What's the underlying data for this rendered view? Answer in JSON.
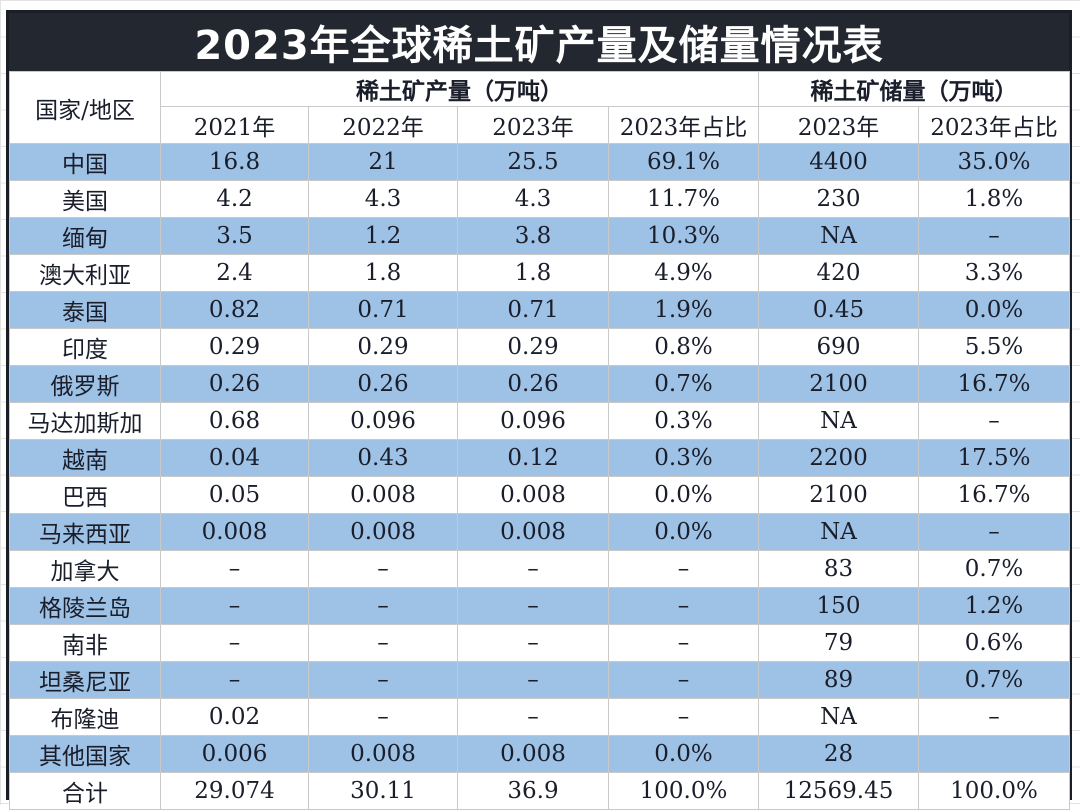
{
  "title": "2023年全球稀土矿产量及储量情况表",
  "header": {
    "country_col": "国家/地区",
    "production_group": "稀土矿产量（万吨）",
    "reserves_group": "稀土矿储量（万吨）",
    "subcolumns": [
      "2021年",
      "2022年",
      "2023年",
      "2023年占比",
      "2023年",
      "2023年占比"
    ]
  },
  "colors": {
    "title_bg": "#232830",
    "title_text": "#ffffff",
    "row_blue": "#9ec1e6",
    "row_white": "#ffffff",
    "border": "#1b1e24"
  },
  "rows": [
    {
      "country": "中国",
      "p2021": "16.8",
      "p2022": "21",
      "p2023": "25.5",
      "p_share": "69.1%",
      "r2023": "4400",
      "r_share": "35.0%"
    },
    {
      "country": "美国",
      "p2021": "4.2",
      "p2022": "4.3",
      "p2023": "4.3",
      "p_share": "11.7%",
      "r2023": "230",
      "r_share": "1.8%"
    },
    {
      "country": "缅甸",
      "p2021": "3.5",
      "p2022": "1.2",
      "p2023": "3.8",
      "p_share": "10.3%",
      "r2023": "NA",
      "r_share": "–"
    },
    {
      "country": "澳大利亚",
      "p2021": "2.4",
      "p2022": "1.8",
      "p2023": "1.8",
      "p_share": "4.9%",
      "r2023": "420",
      "r_share": "3.3%"
    },
    {
      "country": "泰国",
      "p2021": "0.82",
      "p2022": "0.71",
      "p2023": "0.71",
      "p_share": "1.9%",
      "r2023": "0.45",
      "r_share": "0.0%"
    },
    {
      "country": "印度",
      "p2021": "0.29",
      "p2022": "0.29",
      "p2023": "0.29",
      "p_share": "0.8%",
      "r2023": "690",
      "r_share": "5.5%"
    },
    {
      "country": "俄罗斯",
      "p2021": "0.26",
      "p2022": "0.26",
      "p2023": "0.26",
      "p_share": "0.7%",
      "r2023": "2100",
      "r_share": "16.7%"
    },
    {
      "country": "马达加斯加",
      "p2021": "0.68",
      "p2022": "0.096",
      "p2023": "0.096",
      "p_share": "0.3%",
      "r2023": "NA",
      "r_share": "–"
    },
    {
      "country": "越南",
      "p2021": "0.04",
      "p2022": "0.43",
      "p2023": "0.12",
      "p_share": "0.3%",
      "r2023": "2200",
      "r_share": "17.5%"
    },
    {
      "country": "巴西",
      "p2021": "0.05",
      "p2022": "0.008",
      "p2023": "0.008",
      "p_share": "0.0%",
      "r2023": "2100",
      "r_share": "16.7%"
    },
    {
      "country": "马来西亚",
      "p2021": "0.008",
      "p2022": "0.008",
      "p2023": "0.008",
      "p_share": "0.0%",
      "r2023": "NA",
      "r_share": "–"
    },
    {
      "country": "加拿大",
      "p2021": "–",
      "p2022": "–",
      "p2023": "–",
      "p_share": "–",
      "r2023": "83",
      "r_share": "0.7%"
    },
    {
      "country": "格陵兰岛",
      "p2021": "–",
      "p2022": "–",
      "p2023": "–",
      "p_share": "–",
      "r2023": "150",
      "r_share": "1.2%"
    },
    {
      "country": "南非",
      "p2021": "–",
      "p2022": "–",
      "p2023": "–",
      "p_share": "–",
      "r2023": "79",
      "r_share": "0.6%"
    },
    {
      "country": "坦桑尼亚",
      "p2021": "–",
      "p2022": "–",
      "p2023": "–",
      "p_share": "–",
      "r2023": "89",
      "r_share": "0.7%"
    },
    {
      "country": "布隆迪",
      "p2021": "0.02",
      "p2022": "–",
      "p2023": "–",
      "p_share": "–",
      "r2023": "NA",
      "r_share": "–"
    },
    {
      "country": "其他国家",
      "p2021": "0.006",
      "p2022": "0.008",
      "p2023": "0.008",
      "p_share": "0.0%",
      "r2023": "28",
      "r_share": ""
    },
    {
      "country": "合计",
      "p2021": "29.074",
      "p2022": "30.11",
      "p2023": "36.9",
      "p_share": "100.0%",
      "r2023": "12569.45",
      "r_share": "100.0%"
    }
  ]
}
